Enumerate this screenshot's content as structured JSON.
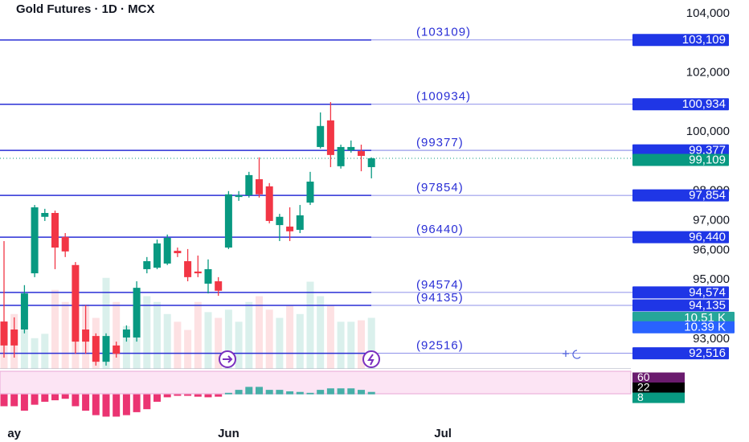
{
  "chart_data": {
    "type": "candlestick",
    "title": "Gold Futures · 1D · MCX",
    "categories": [
      null,
      "ay",
      null,
      null,
      null,
      null,
      null,
      null,
      null,
      null,
      null,
      null,
      null,
      null,
      null,
      null,
      null,
      null,
      null,
      null,
      null,
      null,
      "Jun",
      null,
      null,
      null,
      null,
      null,
      null,
      null,
      null,
      null,
      null,
      null,
      null,
      null,
      null,
      null,
      null,
      null,
      null,
      null,
      null,
      "Jul"
    ],
    "open": [
      93590,
      93320,
      93320,
      95220,
      97130,
      97260,
      96450,
      95500,
      93320,
      93100,
      92230,
      92780,
      93050,
      93050,
      95360,
      95410,
      95550,
      95980,
      95630,
      95280,
      94870,
      94950,
      96090,
      97800,
      97860,
      98400,
      98160,
      96850,
      96800,
      96690,
      97610,
      99490,
      100390,
      98840,
      99380,
      99350,
      98810,
      null,
      null,
      null,
      null,
      null,
      null,
      null
    ],
    "high": [
      96310,
      93730,
      94820,
      97530,
      97400,
      97340,
      96580,
      95600,
      94140,
      93190,
      93190,
      92910,
      93460,
      94950,
      95770,
      96360,
      96530,
      96090,
      96040,
      95820,
      95690,
      95090,
      98000,
      98000,
      98650,
      99140,
      98270,
      97230,
      97450,
      97530,
      98650,
      100660,
      101010,
      99570,
      99710,
      99570,
      99140,
      null,
      null,
      null,
      null,
      null,
      null,
      null
    ],
    "low": [
      92370,
      92370,
      93190,
      95090,
      96990,
      95360,
      95770,
      92500,
      92500,
      92100,
      92100,
      92370,
      92910,
      92910,
      95220,
      95360,
      95500,
      95770,
      94950,
      95090,
      94540,
      94460,
      96040,
      97670,
      97780,
      97780,
      96910,
      96310,
      96310,
      96580,
      97530,
      99440,
      98810,
      98760,
      99300,
      98670,
      98430,
      null,
      null,
      null,
      null,
      null,
      null,
      null
    ],
    "close": [
      92780,
      92780,
      94540,
      97450,
      97260,
      96090,
      95960,
      92910,
      92910,
      92230,
      93100,
      92500,
      93320,
      94730,
      95630,
      96230,
      96420,
      95900,
      95090,
      95220,
      95360,
      94630,
      97890,
      97860,
      98540,
      97890,
      96990,
      97130,
      96640,
      97180,
      98320,
      100200,
      99220,
      99490,
      99490,
      99190,
      99109,
      null,
      null,
      null,
      null,
      null,
      null,
      null
    ],
    "up_color": "#089981",
    "down_color": "#f23645",
    "ylim": [
      92000,
      104460
    ],
    "yticks": [
      {
        "value": 104000,
        "label": "104,000"
      },
      {
        "value": 102000,
        "label": "102,000"
      },
      {
        "value": 100000,
        "label": "100,000"
      },
      {
        "value": 98000,
        "label": "98,000"
      },
      {
        "value": 97000,
        "label": "97,000"
      },
      {
        "value": 96000,
        "label": "96,000"
      },
      {
        "value": 95000,
        "label": "95,000"
      },
      {
        "value": 93000,
        "label": "93,000"
      }
    ],
    "levels": [
      103109,
      100934,
      99377,
      97854,
      96440,
      94574,
      94135,
      92516
    ],
    "level_labels": [
      "(103109)",
      "(100934)",
      "(99377)",
      "(97854)",
      "(96440)",
      "(94574)",
      "(94135)",
      "(92516)"
    ],
    "level_badges": [
      "103,109",
      "100,934",
      "99,377",
      "97,854",
      "96,440",
      "94,574",
      "94,135",
      "92,516"
    ],
    "level_color": "#2a2fd6",
    "last_price": {
      "value": 99109,
      "label": "99,109"
    },
    "volume": [
      8.8,
      11.3,
      13.8,
      6.3,
      7.2,
      16.3,
      13.8,
      13.0,
      13.3,
      10.5,
      18.8,
      13.8,
      8.8,
      13.0,
      15.0,
      13.8,
      11.3,
      9.7,
      8.0,
      13.8,
      11.7,
      10.5,
      12.2,
      9.7,
      13.8,
      15.0,
      12.2,
      10.5,
      13.0,
      11.3,
      18.0,
      15.0,
      13.0,
      9.7,
      9.7,
      10.0,
      10.51,
      null,
      null,
      null,
      null,
      null,
      null,
      null
    ],
    "volume_lim": [
      0,
      76.4
    ],
    "volume_badges": [
      {
        "value": 10.51,
        "label": "10.51 K"
      },
      {
        "value": 10.39,
        "label": "10.39 K"
      }
    ],
    "histogram": [
      -40,
      -40,
      -55,
      -35,
      -25,
      -20,
      -15,
      -40,
      -55,
      -70,
      -75,
      -75,
      -70,
      -60,
      -50,
      -25,
      -10,
      -5,
      -5,
      -8,
      -10,
      -8,
      5,
      15,
      25,
      25,
      15,
      15,
      10,
      8,
      5,
      15,
      20,
      20,
      20,
      15,
      8,
      null,
      null,
      null,
      null,
      null,
      null,
      null
    ],
    "histogram_lim": [
      -90,
      18
    ],
    "indicator_badges": [
      60,
      22,
      8
    ]
  }
}
